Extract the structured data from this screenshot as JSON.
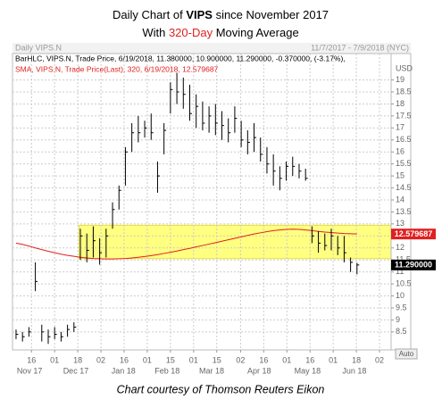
{
  "chart_data": {
    "type": "hlc",
    "title_parts": [
      "Daily Chart of ",
      "VIPS",
      " since November 2017"
    ],
    "subtitle_parts": [
      "With ",
      "320-Day",
      " Moving Average"
    ],
    "panel_name": "Daily VIPS.N",
    "date_range": "11/7/2017 - 7/9/2018 (NYC)",
    "legend": [
      "BarHLC, VIPS.N, Trade Price, 6/19/2018, 11.380000, 10.900000, 11.290000, -0.370000, (-3.17%),",
      "SMA, VIPS.N, Trade Price(Last), 320, 6/19/2018, 12.579687"
    ],
    "y_unit": "USD",
    "auto_label": "Auto",
    "caption": "Chart courtesy of Thomson Reuters Eikon",
    "color": "#000000",
    "high": [
      8.6,
      8.5,
      8.7,
      11.4,
      8.8,
      8.6,
      8.7,
      8.5,
      8.8,
      8.9,
      12.8,
      12.6,
      12.9,
      12.4,
      12.8,
      13.9,
      14.6,
      16.2,
      17.2,
      17.5,
      17.3,
      17.6,
      15.6,
      17.2,
      18.9,
      19.3,
      19.1,
      18.8,
      18.4,
      18.1,
      17.9,
      18.0,
      17.7,
      17.4,
      17.9,
      17.3,
      16.9,
      17.2,
      16.6,
      16.2,
      15.9,
      15.4,
      15.6,
      15.8,
      15.5,
      15.3,
      12.9,
      12.7,
      12.6,
      12.8,
      12.5,
      12.5,
      11.6,
      11.38
    ],
    "low": [
      8.2,
      8.1,
      8.3,
      10.2,
      8.1,
      8.0,
      8.2,
      8.1,
      8.3,
      8.5,
      11.5,
      11.4,
      11.6,
      11.3,
      11.6,
      12.8,
      13.6,
      14.6,
      16.0,
      16.4,
      16.6,
      16.5,
      14.3,
      15.9,
      17.6,
      18.0,
      17.8,
      17.3,
      17.0,
      16.9,
      16.8,
      16.7,
      16.5,
      16.4,
      16.8,
      16.2,
      15.9,
      16.0,
      15.6,
      15.1,
      14.6,
      14.4,
      14.8,
      15.0,
      14.9,
      14.8,
      12.2,
      11.8,
      11.9,
      11.9,
      11.7,
      11.4,
      11.0,
      10.9
    ],
    "close": [
      8.4,
      8.3,
      8.5,
      10.6,
      8.5,
      8.3,
      8.4,
      8.3,
      8.6,
      8.7,
      12.5,
      11.9,
      12.3,
      11.8,
      12.5,
      13.6,
      14.4,
      16.0,
      16.8,
      16.8,
      17.0,
      16.8,
      15.0,
      16.9,
      18.6,
      18.5,
      18.4,
      17.6,
      17.9,
      17.2,
      17.5,
      17.2,
      17.1,
      16.8,
      17.4,
      16.5,
      16.4,
      16.6,
      15.9,
      15.5,
      15.2,
      14.9,
      15.4,
      15.4,
      15.2,
      14.9,
      12.5,
      12.2,
      12.1,
      12.5,
      12.0,
      11.8,
      11.4,
      11.29
    ],
    "sma": {
      "color": "#e02020",
      "values": [
        12.2,
        12.15,
        12.08,
        12.0,
        11.93,
        11.86,
        11.8,
        11.74,
        11.69,
        11.65,
        11.61,
        11.58,
        11.56,
        11.55,
        11.54,
        11.54,
        11.55,
        11.56,
        11.58,
        11.61,
        11.64,
        11.68,
        11.72,
        11.77,
        11.82,
        11.87,
        11.93,
        11.98,
        12.04,
        12.1,
        12.16,
        12.22,
        12.28,
        12.34,
        12.4,
        12.46,
        12.52,
        12.58,
        12.63,
        12.68,
        12.72,
        12.75,
        12.77,
        12.78,
        12.77,
        12.75,
        12.72,
        12.69,
        12.66,
        12.64,
        12.62,
        12.6,
        12.59,
        12.58
      ]
    },
    "highlight": {
      "color": "#ffff80",
      "xlim": [
        9.8,
        58.3
      ],
      "ylim": [
        11.55,
        12.95
      ]
    },
    "price_tags": [
      {
        "value": 12.579687,
        "label": "12.579687",
        "color": "#e02020"
      },
      {
        "value": 11.29,
        "label": "11.290000",
        "color": "#000000"
      }
    ],
    "xlim": [
      -0.55,
      58.3
    ],
    "ylim": [
      7.75,
      20.1
    ],
    "yticks": [
      8.5,
      9,
      9.5,
      10,
      10.5,
      11,
      11.5,
      12,
      12.5,
      13,
      13.5,
      14,
      14.5,
      15,
      15.5,
      16,
      16.5,
      17,
      17.5,
      18,
      18.5,
      19
    ],
    "xticks": [
      {
        "value": 2.4,
        "label": "16"
      },
      {
        "value": 6,
        "label": "01"
      },
      {
        "value": 9.6,
        "label": "18"
      },
      {
        "value": 13.2,
        "label": "02"
      },
      {
        "value": 16.8,
        "label": "16"
      },
      {
        "value": 20.4,
        "label": "01"
      },
      {
        "value": 24,
        "label": "15"
      },
      {
        "value": 27.6,
        "label": "01"
      },
      {
        "value": 31.2,
        "label": "15"
      },
      {
        "value": 34.9,
        "label": "02"
      },
      {
        "value": 38.5,
        "label": "16"
      },
      {
        "value": 42.1,
        "label": "01"
      },
      {
        "value": 45.7,
        "label": "16"
      },
      {
        "value": 49.3,
        "label": "01"
      },
      {
        "value": 52.9,
        "label": "18"
      },
      {
        "value": 56.5,
        "label": "02"
      }
    ],
    "month_ticks": [
      {
        "value": 2.1,
        "label": "Nov 17"
      },
      {
        "value": 9.3,
        "label": "Dec 17"
      },
      {
        "value": 16.7,
        "label": "Jan 18"
      },
      {
        "value": 23.5,
        "label": "Feb 18"
      },
      {
        "value": 30.4,
        "label": "Mar 18"
      },
      {
        "value": 37.8,
        "label": "Apr 18"
      },
      {
        "value": 45.3,
        "label": "May 18"
      },
      {
        "value": 52.6,
        "label": "Jun 18"
      }
    ],
    "grid": true
  }
}
